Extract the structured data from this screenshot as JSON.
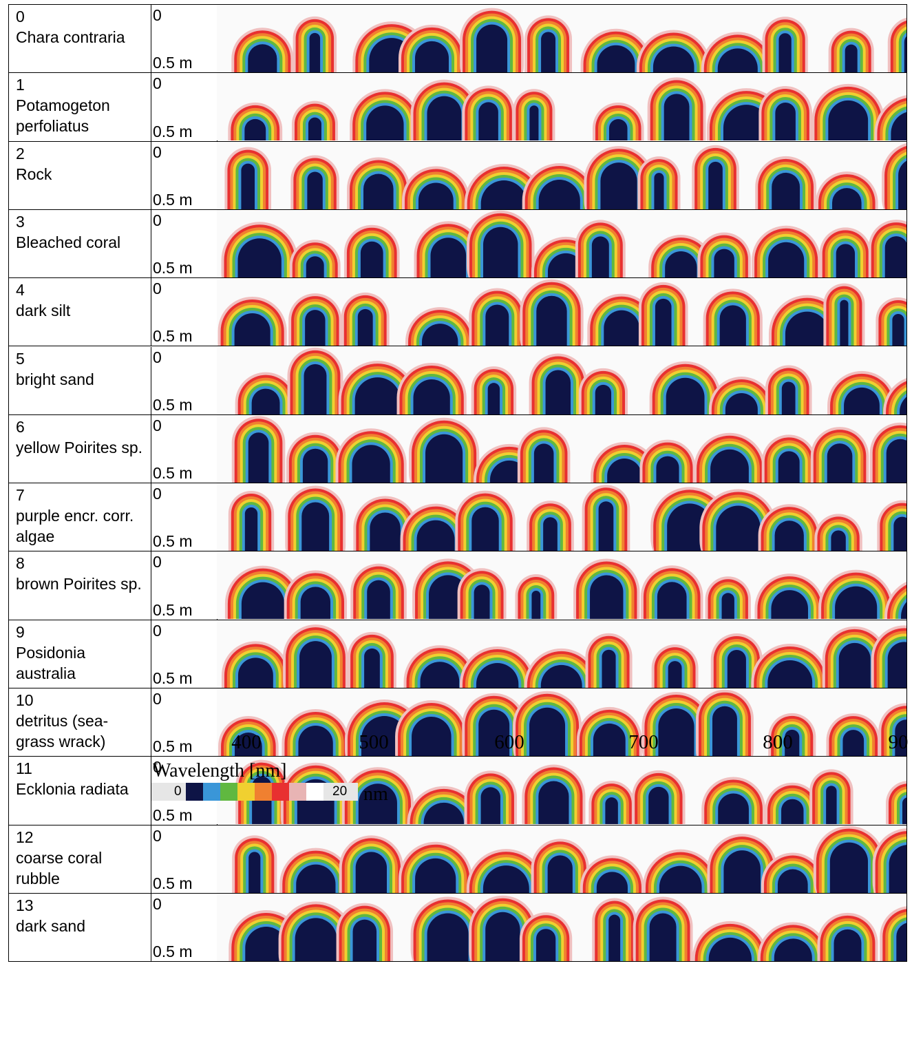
{
  "rows": [
    {
      "index": "0",
      "name": "Chara contraria"
    },
    {
      "index": "1",
      "name": "Potamogeton perfoliatus"
    },
    {
      "index": "2",
      "name": "Rock"
    },
    {
      "index": "3",
      "name": "Bleached coral"
    },
    {
      "index": "4",
      "name": "dark silt"
    },
    {
      "index": "5",
      "name": "bright sand"
    },
    {
      "index": "6",
      "name": "yellow Poirites sp."
    },
    {
      "index": "7",
      "name": "purple encr. corr. algae"
    },
    {
      "index": "8",
      "name": "brown Poirites sp."
    },
    {
      "index": "9",
      "name": "Posidonia australia"
    },
    {
      "index": "10",
      "name": "detritus (sea-grass wrack)"
    },
    {
      "index": "11",
      "name": "Ecklonia radiata"
    },
    {
      "index": "12",
      "name": "coarse coral rubble"
    },
    {
      "index": "13",
      "name": "dark sand"
    }
  ],
  "depth": {
    "top": "0",
    "bottom": "0.5 m"
  },
  "x_axis": {
    "ticks": [
      "400",
      "500",
      "600",
      "700",
      "800",
      "90"
    ],
    "label": "Wavelength [nm]"
  },
  "colorbar": {
    "min": "0",
    "max": "20",
    "unit": "nm"
  }
}
